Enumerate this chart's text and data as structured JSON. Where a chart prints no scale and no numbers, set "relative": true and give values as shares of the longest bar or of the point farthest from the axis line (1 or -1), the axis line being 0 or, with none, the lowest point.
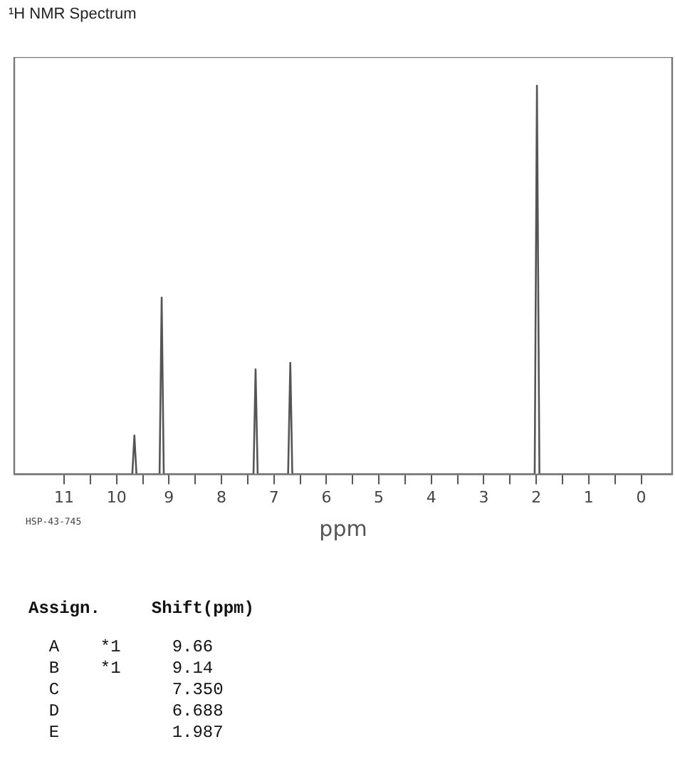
{
  "chart_data": {
    "type": "line",
    "title": "¹H NMR Spectrum",
    "xlabel": "ppm",
    "relative": true,
    "color": "#555555",
    "x": [
      11.95,
      9.7,
      9.66,
      9.62,
      9.18,
      9.14,
      9.1,
      7.39,
      7.35,
      7.31,
      6.73,
      6.688,
      6.65,
      2.03,
      1.987,
      1.94,
      -0.59
    ],
    "values": [
      0,
      0,
      0.1,
      0,
      0,
      0.455,
      0,
      0,
      0.27,
      0,
      0,
      0.287,
      0,
      0,
      1,
      0,
      0
    ],
    "xlim": [
      11.95,
      -0.59
    ],
    "xticks": [
      11,
      {
        "value": 10.5,
        "label": null
      },
      10,
      {
        "value": 9.5,
        "label": null
      },
      9,
      {
        "value": 8.5,
        "label": null
      },
      8,
      {
        "value": 7.5,
        "label": null
      },
      7,
      {
        "value": 6.5,
        "label": null
      },
      6,
      {
        "value": 5.5,
        "label": null
      },
      5,
      {
        "value": 4.5,
        "label": null
      },
      4,
      {
        "value": 3.5,
        "label": null
      },
      3,
      {
        "value": 2.5,
        "label": null
      },
      2,
      {
        "value": 1.5,
        "label": null
      },
      1,
      {
        "value": 0.5,
        "label": null
      },
      0
    ],
    "annotations": [
      "HSP-43-745",
      "Assign.     Shift(ppm)",
      "  A    *1     9.66",
      "  B    *1     9.14",
      "  C           7.350",
      "  D           6.688",
      "  E           1.987"
    ]
  }
}
